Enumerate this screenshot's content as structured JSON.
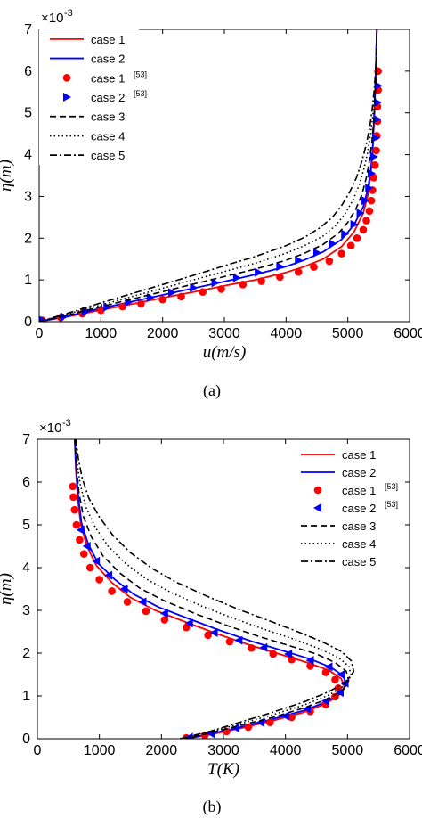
{
  "chart_data": [
    {
      "type": "line",
      "panel": "(a)",
      "xlabel": "u(m/s)",
      "ylabel": "η(m)",
      "y_multiplier": "×10",
      "y_multiplier_exp": "-3",
      "xlim": [
        0,
        6000
      ],
      "ylim": [
        0,
        7
      ],
      "xticks": [
        0,
        1000,
        2000,
        3000,
        4000,
        5000,
        6000
      ],
      "yticks": [
        0,
        1,
        2,
        3,
        4,
        5,
        6,
        7
      ],
      "grid": false,
      "legend_position": "top-left",
      "series": [
        {
          "name": "case 1",
          "ref": "",
          "style": "solid",
          "color": "#ff0000",
          "x": [
            0,
            500,
            1000,
            1500,
            2000,
            2500,
            3000,
            3500,
            4000,
            4300,
            4600,
            4900,
            5100,
            5250,
            5320,
            5370,
            5400,
            5430,
            5450,
            5460,
            5470
          ],
          "y": [
            0,
            0.13,
            0.28,
            0.42,
            0.57,
            0.71,
            0.86,
            1.0,
            1.18,
            1.32,
            1.5,
            1.8,
            2.15,
            2.6,
            3.0,
            3.5,
            4.0,
            5.0,
            5.8,
            6.5,
            7.0
          ]
        },
        {
          "name": "case 2",
          "ref": "",
          "style": "solid",
          "color": "#0000ff",
          "x": [
            0,
            500,
            1000,
            1500,
            2000,
            2500,
            3000,
            3500,
            4000,
            4300,
            4600,
            4900,
            5100,
            5250,
            5320,
            5370,
            5400,
            5430,
            5450,
            5460,
            5470
          ],
          "y": [
            0,
            0.15,
            0.32,
            0.48,
            0.64,
            0.8,
            0.96,
            1.13,
            1.32,
            1.48,
            1.67,
            1.97,
            2.32,
            2.75,
            3.15,
            3.6,
            4.05,
            5.0,
            5.8,
            6.5,
            7.0
          ]
        },
        {
          "name": "case 1",
          "ref": "[53]",
          "style": "dot",
          "color": "#ff0000",
          "x": [
            50,
            350,
            700,
            1000,
            1350,
            1650,
            2000,
            2300,
            2650,
            2950,
            3300,
            3600,
            3900,
            4200,
            4450,
            4700,
            4900,
            5050,
            5150,
            5250,
            5300,
            5350,
            5380,
            5400,
            5420,
            5440,
            5460,
            5470,
            5480,
            5480,
            5490,
            5490
          ],
          "y": [
            0.03,
            0.1,
            0.19,
            0.27,
            0.36,
            0.43,
            0.53,
            0.6,
            0.71,
            0.78,
            0.89,
            0.97,
            1.07,
            1.19,
            1.31,
            1.45,
            1.63,
            1.82,
            2.0,
            2.2,
            2.42,
            2.65,
            2.9,
            3.15,
            3.45,
            3.75,
            4.1,
            4.45,
            4.8,
            5.15,
            5.55,
            6.0
          ]
        },
        {
          "name": "case 2",
          "ref": "[53]",
          "style": "triangle-right",
          "color": "#0000ff",
          "x": [
            50,
            400,
            750,
            1100,
            1450,
            1800,
            2150,
            2500,
            2850,
            3200,
            3550,
            3900,
            4200,
            4500,
            4750,
            4950,
            5100,
            5200,
            5280,
            5340,
            5380,
            5420,
            5450,
            5470,
            5480,
            5490
          ],
          "y": [
            0.04,
            0.12,
            0.24,
            0.35,
            0.47,
            0.58,
            0.7,
            0.81,
            0.93,
            1.05,
            1.18,
            1.32,
            1.47,
            1.65,
            1.87,
            2.1,
            2.33,
            2.6,
            2.9,
            3.2,
            3.55,
            3.95,
            4.4,
            4.85,
            5.25,
            5.65
          ]
        },
        {
          "name": "case 3",
          "ref": "",
          "style": "dashed",
          "color": "#000000",
          "x": [
            0,
            500,
            1000,
            1500,
            2000,
            2500,
            3000,
            3500,
            4000,
            4300,
            4600,
            4850,
            5000,
            5130,
            5230,
            5300,
            5350,
            5390,
            5420,
            5440,
            5460,
            5470
          ],
          "y": [
            0,
            0.17,
            0.36,
            0.54,
            0.72,
            0.9,
            1.08,
            1.26,
            1.47,
            1.64,
            1.85,
            2.12,
            2.38,
            2.7,
            3.05,
            3.45,
            3.85,
            4.3,
            4.8,
            5.3,
            6.0,
            7.0
          ]
        },
        {
          "name": "case 4",
          "ref": "",
          "style": "dotted",
          "color": "#000000",
          "x": [
            0,
            500,
            1000,
            1500,
            2000,
            2500,
            3000,
            3500,
            4000,
            4300,
            4600,
            4800,
            4950,
            5080,
            5180,
            5260,
            5320,
            5370,
            5410,
            5440,
            5460,
            5470
          ],
          "y": [
            0,
            0.2,
            0.4,
            0.6,
            0.8,
            1.0,
            1.2,
            1.4,
            1.64,
            1.82,
            2.05,
            2.3,
            2.57,
            2.9,
            3.25,
            3.65,
            4.05,
            4.5,
            5.0,
            5.5,
            6.2,
            7.0
          ]
        },
        {
          "name": "case 5",
          "ref": "",
          "style": "dashdot",
          "color": "#000000",
          "x": [
            0,
            500,
            1000,
            1500,
            2000,
            2500,
            3000,
            3500,
            4000,
            4300,
            4550,
            4750,
            4900,
            5030,
            5140,
            5230,
            5300,
            5360,
            5400,
            5430,
            5460,
            5470
          ],
          "y": [
            0,
            0.22,
            0.45,
            0.67,
            0.89,
            1.11,
            1.34,
            1.56,
            1.82,
            2.02,
            2.25,
            2.5,
            2.78,
            3.1,
            3.45,
            3.85,
            4.25,
            4.7,
            5.15,
            5.6,
            6.3,
            7.0
          ]
        }
      ]
    },
    {
      "type": "line",
      "panel": "(b)",
      "xlabel": "T(K)",
      "ylabel": "η(m)",
      "y_multiplier": "×10",
      "y_multiplier_exp": "-3",
      "xlim": [
        0,
        6000
      ],
      "ylim": [
        0,
        7
      ],
      "xticks": [
        0,
        1000,
        2000,
        3000,
        4000,
        5000,
        6000
      ],
      "yticks": [
        0,
        1,
        2,
        3,
        4,
        5,
        6,
        7
      ],
      "grid": false,
      "legend_position": "top-right",
      "series": [
        {
          "name": "case 1",
          "ref": "",
          "style": "solid",
          "color": "#ff0000",
          "x": [
            2400,
            2800,
            3300,
            3800,
            4300,
            4650,
            4850,
            4950,
            4900,
            4700,
            4350,
            3900,
            3400,
            2900,
            2400,
            1900,
            1500,
            1200,
            950,
            800,
            700,
            650,
            620,
            600
          ],
          "y": [
            0,
            0.1,
            0.25,
            0.42,
            0.62,
            0.82,
            1.0,
            1.2,
            1.4,
            1.6,
            1.78,
            1.98,
            2.2,
            2.45,
            2.72,
            3.0,
            3.3,
            3.65,
            4.05,
            4.5,
            5.0,
            5.6,
            6.3,
            7.0
          ]
        },
        {
          "name": "case 2",
          "ref": "",
          "style": "solid",
          "color": "#0000ff",
          "x": [
            2400,
            2800,
            3300,
            3800,
            4300,
            4650,
            4880,
            4980,
            4930,
            4730,
            4400,
            3950,
            3450,
            2950,
            2450,
            1950,
            1550,
            1250,
            980,
            820,
            710,
            660,
            625,
            605
          ],
          "y": [
            0,
            0.12,
            0.28,
            0.46,
            0.66,
            0.86,
            1.05,
            1.26,
            1.47,
            1.67,
            1.86,
            2.06,
            2.28,
            2.53,
            2.8,
            3.08,
            3.38,
            3.72,
            4.1,
            4.55,
            5.05,
            5.65,
            6.3,
            7.0
          ]
        },
        {
          "name": "case 1",
          "ref": "[53]",
          "style": "dot",
          "color": "#ff0000",
          "x": [
            2400,
            2700,
            3050,
            3400,
            3750,
            4100,
            4400,
            4650,
            4800,
            4850,
            4800,
            4650,
            4400,
            4100,
            3800,
            3450,
            3100,
            2750,
            2400,
            2050,
            1750,
            1450,
            1200,
            1000,
            850,
            750,
            680,
            630,
            600,
            580,
            570
          ],
          "y": [
            0.02,
            0.08,
            0.17,
            0.27,
            0.38,
            0.5,
            0.64,
            0.8,
            0.98,
            1.18,
            1.38,
            1.55,
            1.7,
            1.85,
            1.98,
            2.12,
            2.27,
            2.42,
            2.6,
            2.78,
            2.98,
            3.2,
            3.45,
            3.72,
            4.0,
            4.32,
            4.65,
            5.0,
            5.35,
            5.65,
            5.9
          ]
        },
        {
          "name": "case 2",
          "ref": "[53]",
          "style": "triangle-left",
          "color": "#0000ff",
          "x": [
            2450,
            2800,
            3200,
            3600,
            4000,
            4350,
            4650,
            4880,
            4960,
            4900,
            4700,
            4400,
            4050,
            3650,
            3250,
            2850,
            2450,
            2050,
            1700,
            1400,
            1150,
            950,
            800,
            700
          ],
          "y": [
            0.03,
            0.12,
            0.25,
            0.38,
            0.53,
            0.7,
            0.88,
            1.08,
            1.3,
            1.5,
            1.68,
            1.83,
            1.98,
            2.13,
            2.3,
            2.48,
            2.7,
            2.93,
            3.2,
            3.5,
            3.82,
            4.15,
            4.5,
            4.88
          ]
        },
        {
          "name": "case 3",
          "ref": "",
          "style": "dashed",
          "color": "#000000",
          "x": [
            2350,
            2800,
            3300,
            3800,
            4300,
            4700,
            4930,
            5020,
            4980,
            4800,
            4500,
            4050,
            3550,
            3050,
            2550,
            2050,
            1650,
            1330,
            1060,
            870,
            740,
            670,
            630,
            605
          ],
          "y": [
            0,
            0.14,
            0.32,
            0.5,
            0.72,
            0.94,
            1.14,
            1.36,
            1.58,
            1.78,
            1.98,
            2.18,
            2.4,
            2.65,
            2.92,
            3.22,
            3.52,
            3.87,
            4.27,
            4.72,
            5.2,
            5.75,
            6.35,
            7.0
          ]
        },
        {
          "name": "case 4",
          "ref": "",
          "style": "dotted",
          "color": "#000000",
          "x": [
            2330,
            2800,
            3300,
            3800,
            4300,
            4700,
            4950,
            5060,
            5020,
            4850,
            4550,
            4150,
            3650,
            3150,
            2650,
            2150,
            1750,
            1420,
            1140,
            930,
            780,
            690,
            640,
            610
          ],
          "y": [
            0,
            0.16,
            0.36,
            0.56,
            0.79,
            1.02,
            1.24,
            1.47,
            1.7,
            1.9,
            2.1,
            2.32,
            2.56,
            2.82,
            3.1,
            3.42,
            3.74,
            4.1,
            4.5,
            4.95,
            5.42,
            5.95,
            6.45,
            7.0
          ]
        },
        {
          "name": "case 5",
          "ref": "",
          "style": "dashdot",
          "color": "#000000",
          "x": [
            2300,
            2800,
            3300,
            3800,
            4300,
            4700,
            4980,
            5100,
            5060,
            4900,
            4600,
            4200,
            3750,
            3250,
            2750,
            2250,
            1850,
            1500,
            1220,
            1000,
            830,
            720,
            660,
            620
          ],
          "y": [
            0,
            0.18,
            0.4,
            0.62,
            0.86,
            1.1,
            1.33,
            1.57,
            1.82,
            2.04,
            2.26,
            2.5,
            2.75,
            3.02,
            3.32,
            3.65,
            3.98,
            4.35,
            4.75,
            5.18,
            5.62,
            6.1,
            6.55,
            7.0
          ]
        }
      ]
    }
  ]
}
